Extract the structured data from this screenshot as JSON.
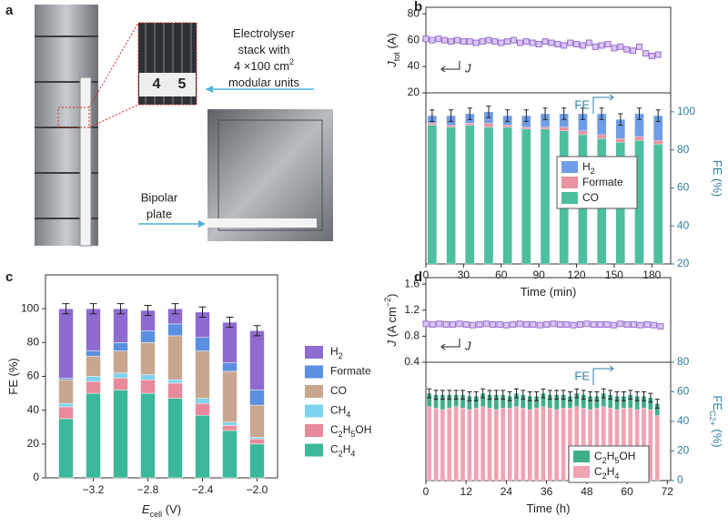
{
  "photo_panel": {
    "label": "a",
    "ruler_digits": [
      "4",
      "5"
    ],
    "callout": [
      [
        {
          "text": "Electrolyser"
        }
      ],
      [
        {
          "text": "stack with"
        }
      ],
      [
        {
          "text": "4 ×100 cm"
        },
        {
          "text": "2",
          "style": "sup"
        }
      ],
      [
        {
          "text": "modular units"
        }
      ]
    ],
    "plate_label": [
      "Bipolar",
      "plate"
    ]
  },
  "chart_data": [
    {
      "type": "time-pair",
      "panel": "b",
      "x_label": [
        {
          "text": "Time (min)"
        }
      ],
      "xlim": [
        0,
        195
      ],
      "xticks": [
        0,
        30,
        60,
        90,
        120,
        150,
        180
      ],
      "annotations": [
        "J",
        "FE"
      ],
      "top": {
        "y_label": [
          {
            "text": "J",
            "style": "italic"
          },
          {
            "text": "tot",
            "style": "sub"
          },
          {
            "text": " (A)"
          }
        ],
        "ylim": [
          20,
          85
        ],
        "yticks": [
          20,
          40,
          60,
          80
        ],
        "series": [
          {
            "color": "#9a6fd2",
            "x": [
              0,
              5,
              10,
              15,
              20,
              25,
              30,
              35,
              40,
              45,
              50,
              55,
              60,
              65,
              70,
              75,
              80,
              85,
              90,
              95,
              100,
              105,
              110,
              115,
              120,
              125,
              130,
              135,
              140,
              145,
              150,
              155,
              160,
              165,
              170,
              175,
              180,
              185
            ],
            "values": [
              61,
              60,
              61,
              60,
              59,
              60,
              59,
              59,
              58,
              59,
              60,
              59,
              58,
              59,
              60,
              58,
              59,
              58,
              57,
              59,
              58,
              57,
              56,
              58,
              57,
              56,
              58,
              55,
              56,
              57,
              54,
              55,
              53,
              52,
              55,
              50,
              48,
              49
            ]
          }
        ]
      },
      "bottom": {
        "y2_label": [
          {
            "text": "FE (%)"
          }
        ],
        "y2lim": [
          20,
          110
        ],
        "y2ticks": [
          20,
          40,
          60,
          80,
          100
        ],
        "axis_color": "#2f7fa6",
        "legend": "lower right",
        "x": [
          5,
          20,
          35,
          50,
          65,
          80,
          95,
          110,
          125,
          140,
          155,
          170,
          185
        ],
        "series": [
          {
            "name": "CO",
            "color": "#4dbf9f",
            "values": [
              93,
              92,
              93,
              92,
              92,
              91,
              91,
              90,
              88,
              86,
              84,
              85,
              83
            ]
          },
          {
            "name": "Formate",
            "color": "#e8939f",
            "values": [
              1,
              1,
              1,
              2,
              1,
              1,
              1,
              2,
              2,
              2,
              2,
              2,
              2
            ]
          },
          {
            "name": "H2",
            "color": "#6f9de8",
            "values": [
              4,
              5,
              5,
              6,
              5,
              6,
              7,
              7,
              9,
              11,
              10,
              12,
              13
            ]
          }
        ],
        "errors": [
          3,
          3,
          3,
          3,
          3,
          3,
          3,
          3,
          3,
          3,
          3,
          3,
          3
        ]
      }
    },
    {
      "type": "stacked-bar",
      "panel": "c",
      "x_label": [
        {
          "text": "E",
          "style": "italic"
        },
        {
          "text": "cell",
          "style": "sub"
        },
        {
          "text": " (V)"
        }
      ],
      "y_label": [
        {
          "text": "FE (%)"
        }
      ],
      "x": [
        -3.4,
        -3.2,
        -3.0,
        -2.8,
        -2.6,
        -2.4,
        -2.2,
        -2.0
      ],
      "xlim": [
        -3.55,
        -1.85
      ],
      "xticks": [
        {
          "value": -3.2,
          "label": "−3.2"
        },
        {
          "value": -2.8,
          "label": "−2.8"
        },
        {
          "value": -2.4,
          "label": "−2.4"
        },
        {
          "value": -2.0,
          "label": "−2.0"
        }
      ],
      "ylim": [
        0,
        120
      ],
      "yticks": [
        0,
        20,
        40,
        60,
        80,
        100
      ],
      "legend": "outside right",
      "series": [
        {
          "name": "C2H4",
          "color": "#3bb89a",
          "values": [
            35,
            50,
            52,
            50,
            47,
            37,
            28,
            20
          ]
        },
        {
          "name": "C2H5OH",
          "color": "#e88a9b",
          "values": [
            7,
            7,
            7,
            8,
            9,
            7,
            3,
            3
          ]
        },
        {
          "name": "CH4",
          "color": "#7fd3ef",
          "values": [
            2,
            3,
            3,
            3,
            2,
            3,
            2,
            1
          ]
        },
        {
          "name": "CO",
          "color": "#c9a68f",
          "values": [
            14,
            12,
            13,
            19,
            26,
            28,
            30,
            19
          ]
        },
        {
          "name": "Formate",
          "color": "#5b8fe0",
          "values": [
            1,
            3,
            5,
            7,
            7,
            8,
            5,
            9
          ]
        },
        {
          "name": "H2",
          "color": "#8e6bd1",
          "values": [
            41,
            25,
            20,
            12,
            9,
            15,
            24,
            35
          ]
        }
      ],
      "errors": [
        3,
        3,
        3,
        3,
        3,
        3,
        3,
        3
      ]
    },
    {
      "type": "time-pair",
      "panel": "d",
      "x_label": [
        {
          "text": "Time (h)"
        }
      ],
      "xlim": [
        0,
        73
      ],
      "xticks": [
        0,
        12,
        24,
        36,
        48,
        60,
        72
      ],
      "annotations": [
        "J",
        "FE"
      ],
      "top": {
        "y_label": [
          {
            "text": "J",
            "style": "italic"
          },
          {
            "text": " (A cm"
          },
          {
            "text": "−2",
            "style": "sup"
          },
          {
            "text": ")"
          }
        ],
        "ylim": [
          0.4,
          1.7
        ],
        "yticks": [
          0.4,
          0.8,
          1.2,
          1.6
        ],
        "series": [
          {
            "color": "#9a6fd2",
            "x": [
              0,
              2,
              4,
              6,
              8,
              10,
              12,
              14,
              16,
              18,
              20,
              22,
              24,
              26,
              28,
              30,
              32,
              34,
              36,
              38,
              40,
              42,
              44,
              46,
              48,
              50,
              52,
              54,
              56,
              58,
              60,
              62,
              64,
              66,
              68,
              70
            ],
            "values": [
              0.99,
              0.98,
              0.99,
              0.98,
              0.98,
              0.99,
              0.98,
              0.97,
              0.98,
              0.99,
              0.98,
              0.98,
              0.97,
              0.98,
              0.99,
              0.98,
              0.98,
              0.97,
              0.98,
              0.99,
              0.98,
              0.98,
              0.97,
              0.98,
              0.99,
              0.98,
              0.98,
              0.98,
              0.97,
              0.99,
              0.98,
              0.98,
              0.97,
              0.98,
              0.97,
              0.95
            ]
          }
        ]
      },
      "bottom": {
        "y2_label": [
          {
            "text": "FE"
          },
          {
            "text": "C2+",
            "style": "sub"
          },
          {
            "text": " (%)"
          }
        ],
        "y2lim": [
          0,
          80
        ],
        "y2ticks": [
          0,
          20,
          40,
          60,
          80
        ],
        "axis_color": "#2f7fa6",
        "legend": "lower right",
        "x": [
          1,
          3,
          5,
          7,
          9,
          11,
          13,
          15,
          17,
          19,
          21,
          23,
          25,
          27,
          29,
          31,
          33,
          35,
          37,
          39,
          41,
          43,
          45,
          47,
          49,
          51,
          53,
          55,
          57,
          59,
          61,
          63,
          65,
          67,
          69
        ],
        "series": [
          {
            "name": "C2H4",
            "color": "#f0a3b2",
            "values": [
              50,
              49,
              48,
              49,
              50,
              49,
              48,
              49,
              50,
              49,
              48,
              49,
              49,
              50,
              49,
              48,
              49,
              50,
              49,
              48,
              49,
              49,
              50,
              49,
              48,
              49,
              50,
              49,
              48,
              49,
              49,
              48,
              49,
              48,
              44
            ]
          },
          {
            "name": "C2H5OH",
            "color": "#3fae8b",
            "values": [
              9,
              9,
              10,
              9,
              8,
              9,
              9,
              8,
              9,
              9,
              10,
              9,
              8,
              9,
              9,
              9,
              8,
              9,
              9,
              10,
              9,
              8,
              9,
              9,
              9,
              8,
              9,
              9,
              9,
              8,
              9,
              9,
              8,
              8,
              8
            ]
          }
        ],
        "errors": [
          3,
          3,
          3,
          3,
          3,
          3,
          3,
          3,
          3,
          3,
          3,
          3,
          3,
          3,
          3,
          3,
          3,
          3,
          3,
          3,
          3,
          3,
          3,
          3,
          3,
          3,
          3,
          3,
          3,
          3,
          3,
          3,
          3,
          3,
          3
        ]
      }
    }
  ]
}
